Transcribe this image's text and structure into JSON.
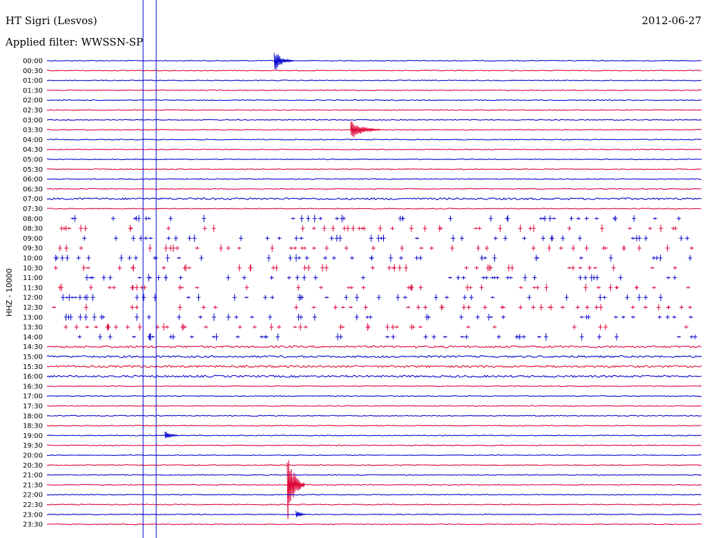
{
  "header": {
    "station": "HT Sigri (Lesvos)",
    "filter": "Applied filter: WWSSN-SP",
    "date": "2012-06-27"
  },
  "colors": {
    "even_row": "#0000cc",
    "odd_row": "#dd0033",
    "marker": "#0000cc"
  },
  "chart_data": {
    "type": "line",
    "title": "",
    "ylabel": "HHZ - 10000",
    "xlabel": "",
    "rows": [
      "00:00",
      "00:30",
      "01:00",
      "01:30",
      "02:00",
      "02:30",
      "03:00",
      "03:30",
      "04:00",
      "04:30",
      "05:00",
      "05:30",
      "06:00",
      "06:30",
      "07:00",
      "07:30",
      "08:00",
      "08:30",
      "09:00",
      "09:30",
      "10:00",
      "10:30",
      "11:00",
      "11:30",
      "12:00",
      "12:30",
      "13:00",
      "13:30",
      "14:00",
      "14:30",
      "15:00",
      "15:30",
      "16:00",
      "16:30",
      "17:00",
      "17:30",
      "18:00",
      "18:30",
      "19:00",
      "19:30",
      "20:00",
      "20:30",
      "21:00",
      "21:30",
      "22:00",
      "22:30",
      "23:00",
      "23:30"
    ],
    "row_duration_minutes": 30,
    "vertical_markers_minutes": [
      4.4,
      5.0
    ],
    "events": [
      {
        "row": "00:00",
        "minute": 10.4,
        "amplitude": 18,
        "duration_minutes": 0.9
      },
      {
        "row": "03:30",
        "minute": 13.9,
        "amplitude": 16,
        "duration_minutes": 1.4
      },
      {
        "row": "19:00",
        "minute": 5.4,
        "amplitude": 9,
        "duration_minutes": 0.6
      },
      {
        "row": "21:30",
        "minute": 11.0,
        "amplitude": 60,
        "duration_minutes": 0.8
      },
      {
        "row": "23:00",
        "minute": 11.4,
        "amplitude": 8,
        "duration_minutes": 0.5
      }
    ],
    "spike_rows": [
      "08:00",
      "08:30",
      "09:00",
      "09:30",
      "10:00",
      "10:30",
      "11:00",
      "11:30",
      "12:00",
      "12:30",
      "13:00",
      "13:30",
      "14:00"
    ]
  }
}
